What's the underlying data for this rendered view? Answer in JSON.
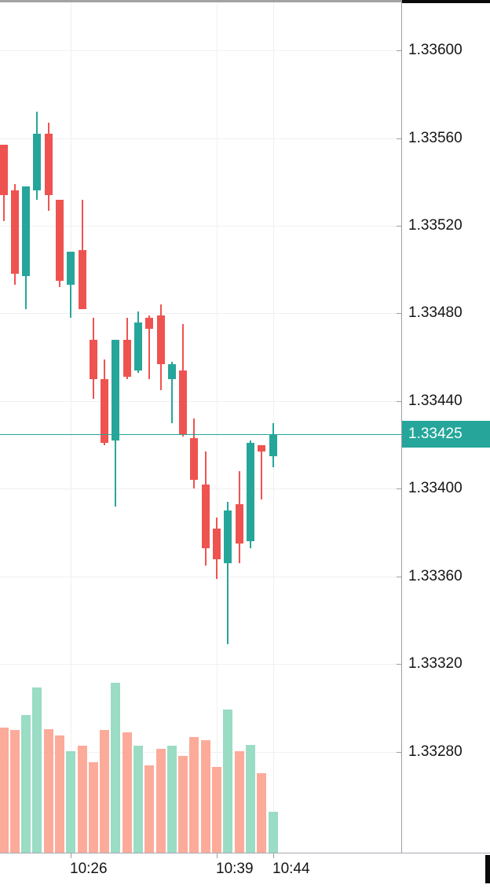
{
  "chart_data": {
    "type": "candlestick",
    "title": "intraday FX candlestick chart with volume",
    "last_price": 1.33425,
    "last_price_label": "1.33425",
    "colors": {
      "up": "#26a69a",
      "down": "#ef5350",
      "volume_up": "#9adcc4",
      "volume_down": "#fcab9b",
      "price_line": "#26a69a",
      "price_tag_bg": "#26a69a",
      "price_tag_text": "#ffffff",
      "grid": "#f0f0f1",
      "axis_text": "#151515"
    },
    "y_axis": {
      "side": "right",
      "ticks": [
        "1.33600",
        "1.33560",
        "1.33520",
        "1.33480",
        "1.33440",
        "1.33400",
        "1.33360",
        "1.33320",
        "1.33280"
      ],
      "tick_values": [
        1.336,
        1.3356,
        1.3352,
        1.3348,
        1.3344,
        1.334,
        1.3336,
        1.3332,
        1.3328
      ],
      "price_at_top": 1.33623,
      "price_at_bottom": 1.33234
    },
    "x_axis": {
      "side": "bottom",
      "labels": [
        "10:26",
        "10:39",
        "10:44"
      ]
    },
    "grid": true,
    "legend": false,
    "candles": [
      {
        "t": "10:20",
        "o": 1.33557,
        "h": 1.33557,
        "l": 1.33522,
        "c": 1.33534
      },
      {
        "t": "10:21",
        "o": 1.33536,
        "h": 1.33539,
        "l": 1.33493,
        "c": 1.33498
      },
      {
        "t": "10:22",
        "o": 1.33497,
        "h": 1.33538,
        "l": 1.33482,
        "c": 1.33538
      },
      {
        "t": "10:23",
        "o": 1.33536,
        "h": 1.33572,
        "l": 1.33532,
        "c": 1.33562
      },
      {
        "t": "10:24",
        "o": 1.33562,
        "h": 1.33567,
        "l": 1.33527,
        "c": 1.33534
      },
      {
        "t": "10:25",
        "o": 1.33532,
        "h": 1.33532,
        "l": 1.33492,
        "c": 1.33495
      },
      {
        "t": "10:26",
        "o": 1.33493,
        "h": 1.33508,
        "l": 1.33478,
        "c": 1.33508
      },
      {
        "t": "10:27",
        "o": 1.33509,
        "h": 1.33532,
        "l": 1.33482,
        "c": 1.33482
      },
      {
        "t": "10:28",
        "o": 1.33468,
        "h": 1.33478,
        "l": 1.33441,
        "c": 1.3345
      },
      {
        "t": "10:29",
        "o": 1.3345,
        "h": 1.33459,
        "l": 1.3342,
        "c": 1.33421
      },
      {
        "t": "10:30",
        "o": 1.33422,
        "h": 1.33468,
        "l": 1.33392,
        "c": 1.33468
      },
      {
        "t": "10:31",
        "o": 1.33468,
        "h": 1.33478,
        "l": 1.3345,
        "c": 1.33451
      },
      {
        "t": "10:32",
        "o": 1.33454,
        "h": 1.33481,
        "l": 1.33453,
        "c": 1.33476
      },
      {
        "t": "10:33",
        "o": 1.33478,
        "h": 1.33479,
        "l": 1.3345,
        "c": 1.33473
      },
      {
        "t": "10:34",
        "o": 1.33479,
        "h": 1.33484,
        "l": 1.33445,
        "c": 1.33457
      },
      {
        "t": "10:35",
        "o": 1.3345,
        "h": 1.33458,
        "l": 1.3343,
        "c": 1.33457
      },
      {
        "t": "10:36",
        "o": 1.33454,
        "h": 1.33475,
        "l": 1.33424,
        "c": 1.33425
      },
      {
        "t": "10:37",
        "o": 1.33423,
        "h": 1.33432,
        "l": 1.334,
        "c": 1.33404
      },
      {
        "t": "10:38",
        "o": 1.33402,
        "h": 1.33417,
        "l": 1.33365,
        "c": 1.33373
      },
      {
        "t": "10:39",
        "o": 1.33382,
        "h": 1.33387,
        "l": 1.33359,
        "c": 1.33368
      },
      {
        "t": "10:40",
        "o": 1.33366,
        "h": 1.33394,
        "l": 1.33329,
        "c": 1.3339
      },
      {
        "t": "10:41",
        "o": 1.33393,
        "h": 1.33408,
        "l": 1.33366,
        "c": 1.33375
      },
      {
        "t": "10:42",
        "o": 1.33376,
        "h": 1.33422,
        "l": 1.33373,
        "c": 1.33421
      },
      {
        "t": "10:43",
        "o": 1.3342,
        "h": 1.3342,
        "l": 1.33395,
        "c": 1.33417
      },
      {
        "t": "10:44",
        "o": 1.33415,
        "h": 1.3343,
        "l": 1.3341,
        "c": 1.33425
      }
    ],
    "volumes_relative": [
      159,
      156,
      175,
      210,
      157,
      149,
      129,
      136,
      115,
      156,
      216,
      153,
      136,
      111,
      132,
      136,
      123,
      147,
      143,
      109,
      182,
      129,
      137,
      101,
      52
    ]
  }
}
